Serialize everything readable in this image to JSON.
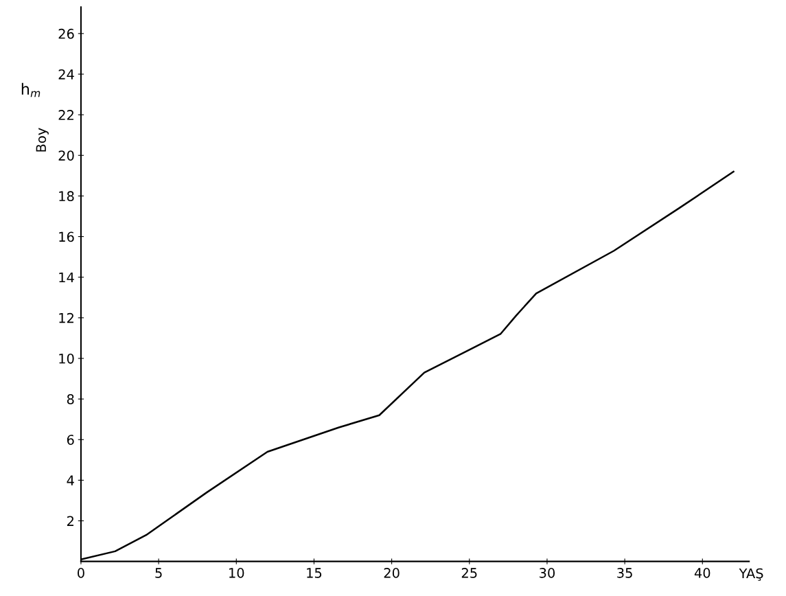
{
  "chart_data": {
    "type": "line",
    "xlabel": "YAŞ",
    "ylabel": "Boy",
    "annotations": [
      "h$_{m}$"
    ],
    "x": [
      0,
      2.2,
      4.2,
      8.1,
      12.0,
      16.6,
      19.2,
      22.1,
      27.0,
      28.0,
      29.3,
      34.3,
      38.5,
      42.0
    ],
    "series": [
      {
        "color": "#000000",
        "values": [
          0.1,
          0.5,
          1.3,
          3.4,
          5.4,
          6.6,
          7.2,
          9.3,
          11.2,
          12.1,
          13.2,
          15.3,
          17.4,
          19.2
        ]
      }
    ],
    "xlim": [
      0,
      43
    ],
    "xticks": [
      0,
      5,
      10,
      15,
      20,
      25,
      30,
      35,
      40
    ],
    "ylim": [
      0,
      27.3
    ],
    "yticks": [
      2,
      4,
      6,
      8,
      10,
      12,
      14,
      16,
      18,
      20,
      22,
      24,
      26
    ],
    "grid": false,
    "legend": false,
    "marker": "none",
    "line_style": "solid"
  }
}
